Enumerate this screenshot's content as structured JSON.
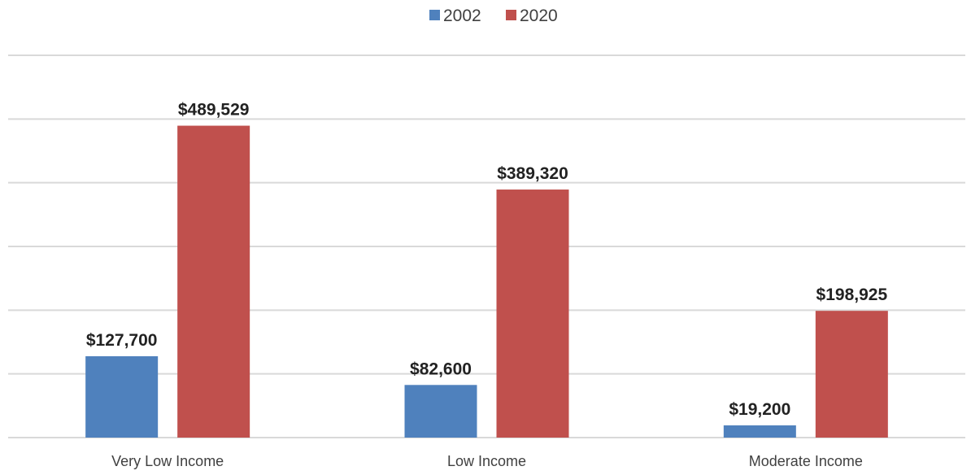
{
  "chart_data": {
    "type": "bar",
    "categories": [
      "Very Low Income",
      "Low Income",
      "Moderate Income"
    ],
    "series": [
      {
        "name": "2002",
        "color": "#4f81bd",
        "values": [
          127700,
          82600,
          19200
        ],
        "labels": [
          "$127,700",
          "$82,600",
          "$19,200"
        ]
      },
      {
        "name": "2020",
        "color": "#c0504d",
        "values": [
          489529,
          389320,
          198925
        ],
        "labels": [
          "$489,529",
          "$389,320",
          "$198,925"
        ]
      }
    ],
    "ylim": [
      0,
      600000
    ],
    "grid": true,
    "legend_position": "top-center",
    "title": "",
    "xlabel": "",
    "ylabel": ""
  }
}
